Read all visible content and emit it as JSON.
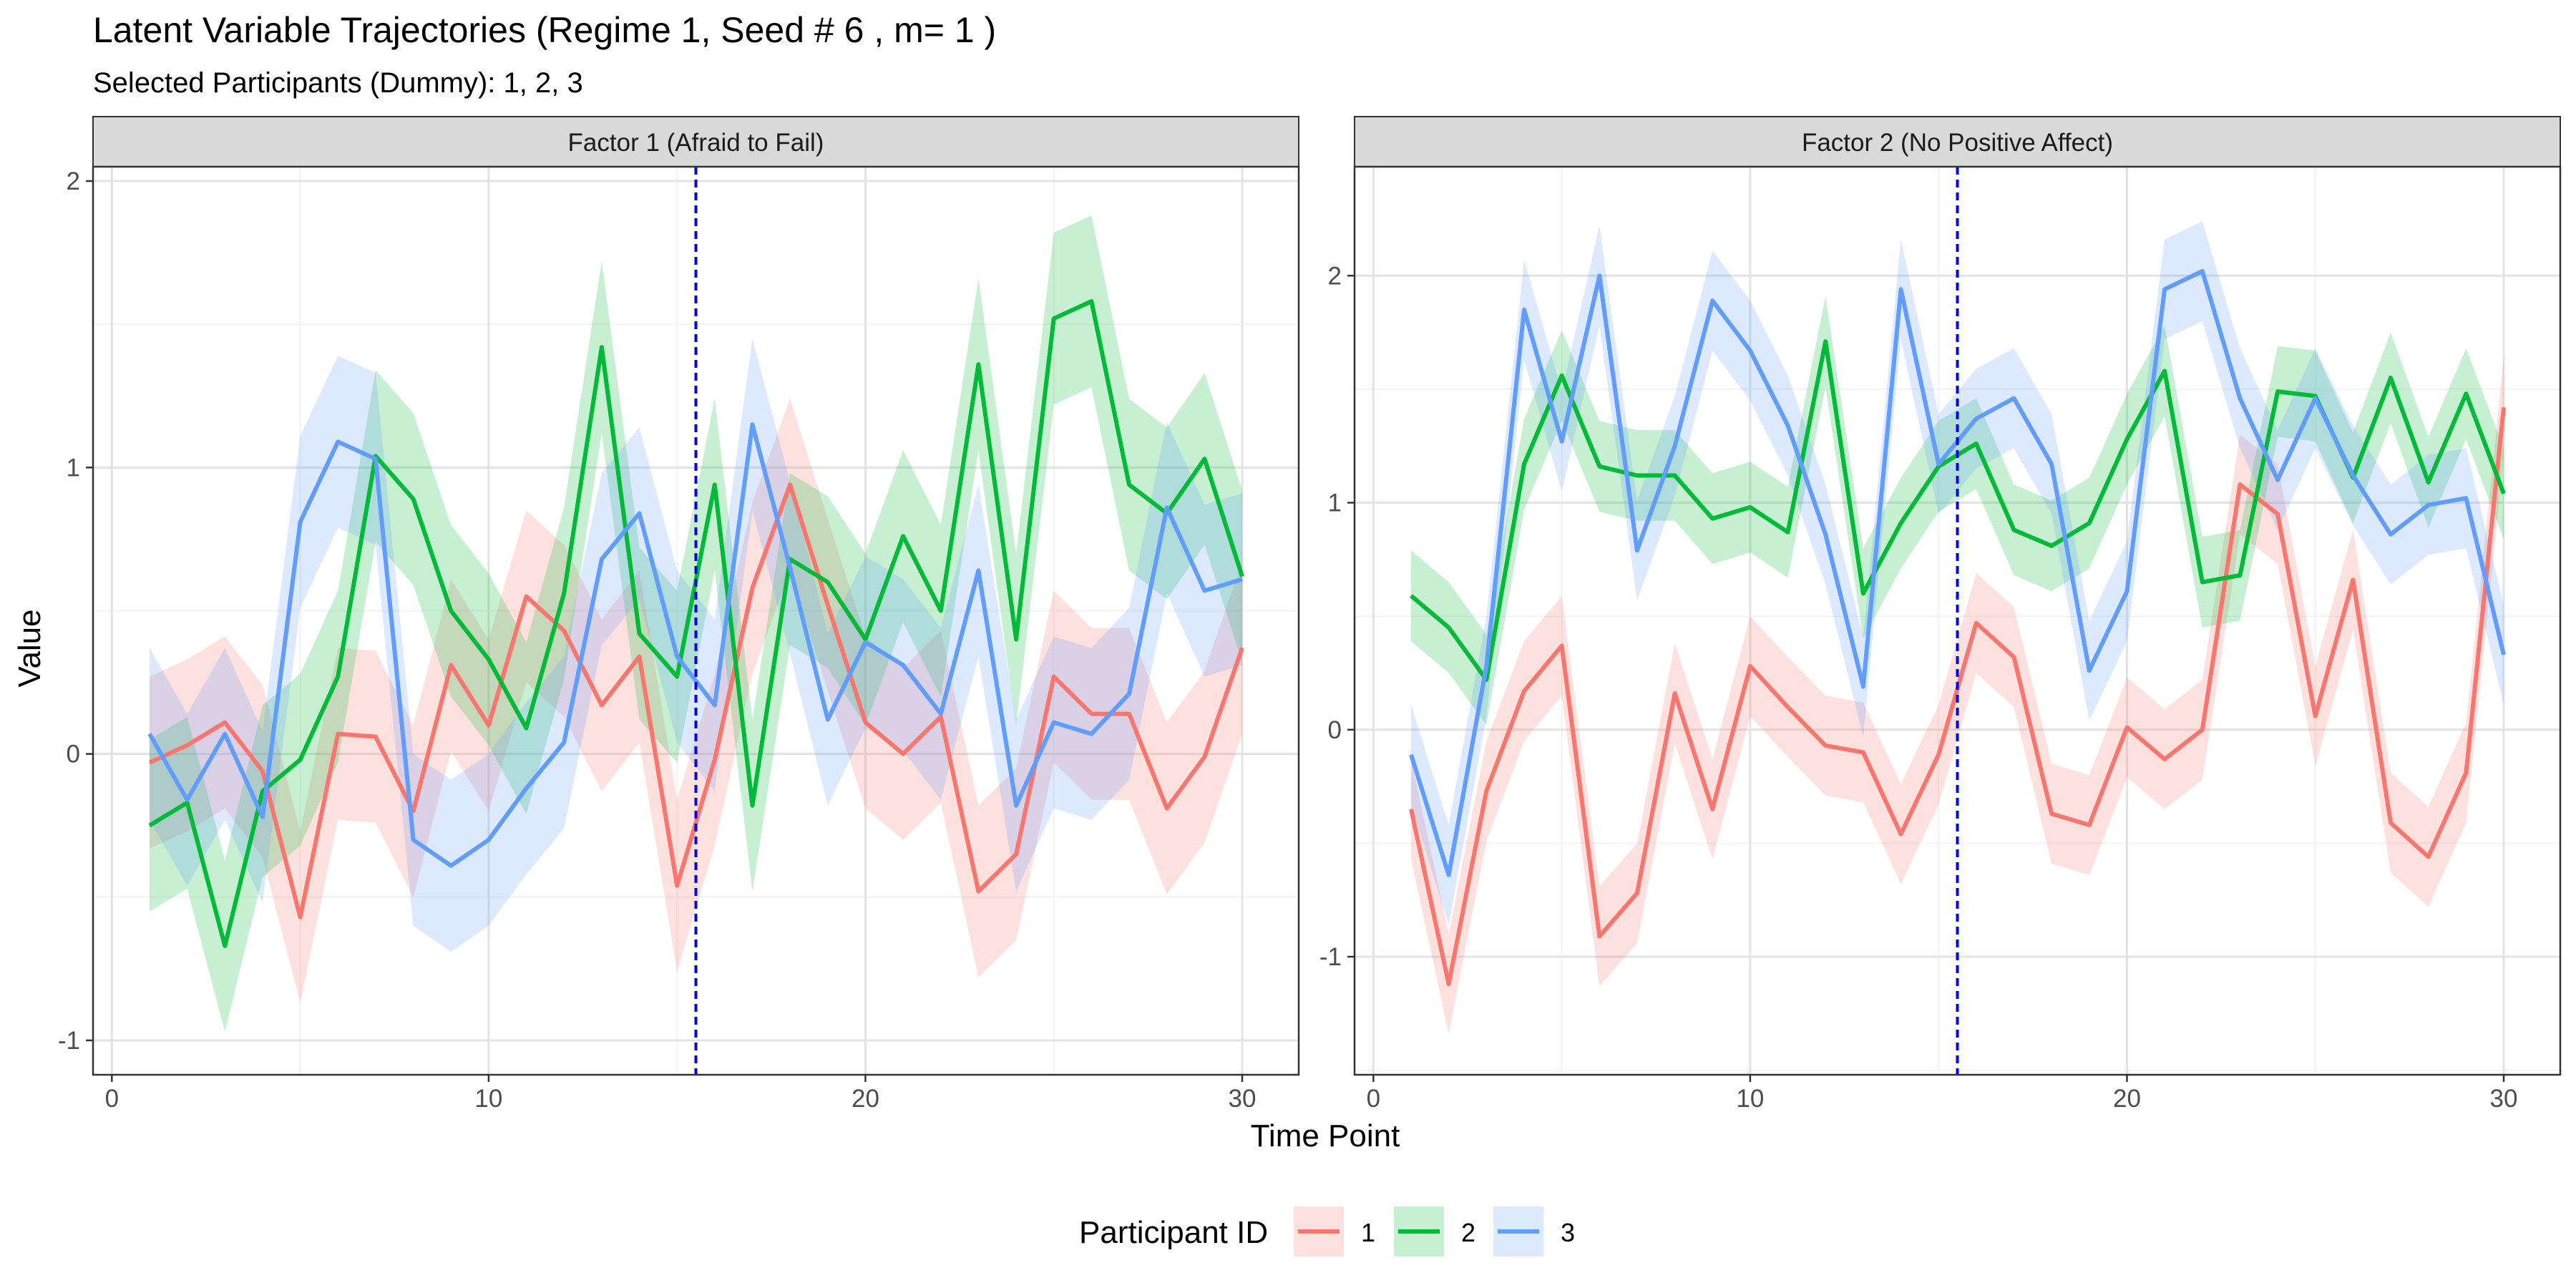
{
  "chart_data": {
    "type": "line",
    "title": "Latent Variable Trajectories (Regime 1, Seed # 6 , m= 1 )",
    "subtitle": "Selected Participants (Dummy): 1, 2, 3",
    "xlabel": "Time Point",
    "ylabel": "Value",
    "legend": {
      "title": "Participant ID",
      "position": "bottom",
      "entries": [
        "1",
        "2",
        "3"
      ]
    },
    "colors": {
      "1": "#F8766D",
      "2": "#00BA38",
      "3": "#619CFF",
      "vline": "#0000FF",
      "strip": "#D9D9D9"
    },
    "grid": true,
    "vline_x": 15.5,
    "x_ticks": [
      0,
      10,
      20,
      30
    ],
    "x": [
      1,
      2,
      3,
      4,
      5,
      6,
      7,
      8,
      9,
      10,
      11,
      12,
      13,
      14,
      15,
      16,
      17,
      18,
      19,
      20,
      21,
      22,
      23,
      24,
      25,
      26,
      27,
      28,
      29,
      30
    ],
    "panels": [
      {
        "strip_label": "Factor 1 (Afraid to Fail)",
        "xlim": [
          -0.5,
          31.5
        ],
        "ylim": [
          -1.12,
          2.05
        ],
        "y_ticks": [
          -1,
          0,
          1,
          2
        ],
        "band_halfwidth": [
          0.3,
          0.3,
          0.3
        ],
        "series": [
          {
            "name": "1",
            "values": [
              -0.03,
              0.03,
              0.11,
              -0.06,
              -0.57,
              0.07,
              0.06,
              -0.2,
              0.31,
              0.1,
              0.55,
              0.43,
              0.17,
              0.34,
              -0.46,
              -0.02,
              0.58,
              0.94,
              0.52,
              0.11,
              0.0,
              0.13,
              -0.48,
              -0.35,
              0.27,
              0.14,
              0.14,
              -0.19,
              -0.01,
              0.37
            ]
          },
          {
            "name": "2",
            "values": [
              -0.25,
              -0.17,
              -0.67,
              -0.13,
              -0.02,
              0.27,
              1.04,
              0.89,
              0.5,
              0.33,
              0.09,
              0.56,
              1.42,
              0.42,
              0.27,
              0.94,
              -0.18,
              0.68,
              0.6,
              0.4,
              0.76,
              0.5,
              1.36,
              0.4,
              1.52,
              1.58,
              0.94,
              0.84,
              1.03,
              0.62
            ]
          },
          {
            "name": "3",
            "values": [
              0.07,
              -0.16,
              0.07,
              -0.22,
              0.81,
              1.09,
              1.03,
              -0.3,
              -0.39,
              -0.3,
              -0.12,
              0.04,
              0.68,
              0.84,
              0.34,
              0.17,
              1.15,
              0.65,
              0.12,
              0.39,
              0.31,
              0.14,
              0.64,
              -0.18,
              0.11,
              0.07,
              0.21,
              0.86,
              0.57,
              0.61
            ]
          }
        ]
      },
      {
        "strip_label": "Factor 2 (No Positive Affect)",
        "xlim": [
          -0.5,
          31.5
        ],
        "ylim": [
          -1.52,
          2.48
        ],
        "y_ticks": [
          -1,
          0,
          1,
          2
        ],
        "band_halfwidth": [
          0.22,
          0.2,
          0.22
        ],
        "series": [
          {
            "name": "1",
            "values": [
              -0.35,
              -1.12,
              -0.27,
              0.17,
              0.37,
              -0.91,
              -0.72,
              0.16,
              -0.35,
              0.28,
              0.1,
              -0.07,
              -0.1,
              -0.46,
              -0.11,
              0.47,
              0.32,
              -0.37,
              -0.42,
              0.01,
              -0.13,
              0.0,
              1.08,
              0.95,
              0.06,
              0.66,
              -0.41,
              -0.56,
              -0.19,
              1.42
            ]
          },
          {
            "name": "2",
            "values": [
              0.59,
              0.45,
              0.22,
              1.17,
              1.56,
              1.16,
              1.12,
              1.12,
              0.93,
              0.98,
              0.87,
              1.71,
              0.6,
              0.91,
              1.16,
              1.26,
              0.88,
              0.81,
              0.91,
              1.28,
              1.58,
              0.65,
              0.68,
              1.49,
              1.47,
              1.11,
              1.55,
              1.09,
              1.48,
              1.04
            ]
          },
          {
            "name": "3",
            "values": [
              -0.11,
              -0.64,
              0.28,
              1.85,
              1.27,
              2.0,
              0.79,
              1.25,
              1.89,
              1.67,
              1.34,
              0.86,
              0.19,
              1.94,
              1.17,
              1.37,
              1.46,
              1.17,
              0.26,
              0.61,
              1.94,
              2.02,
              1.46,
              1.1,
              1.46,
              1.12,
              0.86,
              0.99,
              1.02,
              0.33
            ]
          }
        ]
      }
    ]
  }
}
